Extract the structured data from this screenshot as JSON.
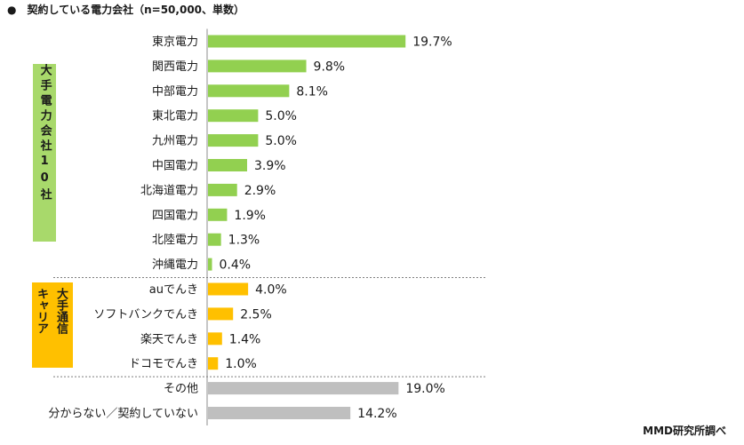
{
  "title": "●　契約している電力会社（n=50,000、単数）",
  "source": "MMD研究所調べ",
  "groups": {
    "major_power": "大手電力会社10社",
    "carrier_line1": "大手通信",
    "carrier_line2": "キャリア"
  },
  "colors": {
    "power": "#92d050",
    "carrier": "#ffc000",
    "other": "#bfbfbf",
    "power_group_bg": "#a8d96b"
  },
  "chart_data": {
    "type": "bar",
    "orientation": "horizontal",
    "title": "契約している電力会社（n=50,000、単数）",
    "xlabel": "",
    "ylabel": "",
    "unit": "%",
    "xlim": [
      0,
      30
    ],
    "grid": false,
    "categories": [
      "東京電力",
      "関西電力",
      "中部電力",
      "東北電力",
      "九州電力",
      "中国電力",
      "北海道電力",
      "四国電力",
      "北陸電力",
      "沖縄電力",
      "auでんき",
      "ソフトバンクでんき",
      "楽天でんき",
      "ドコモでんき",
      "その他",
      "分からない／契約していない"
    ],
    "values": [
      19.7,
      9.8,
      8.1,
      5.0,
      5.0,
      3.9,
      2.9,
      1.9,
      1.3,
      0.4,
      4.0,
      2.5,
      1.4,
      1.0,
      19.0,
      14.2
    ],
    "value_labels": [
      "19.7%",
      "9.8%",
      "8.1%",
      "5.0%",
      "5.0%",
      "3.9%",
      "2.9%",
      "1.9%",
      "1.3%",
      "0.4%",
      "4.0%",
      "2.5%",
      "1.4%",
      "1.0%",
      "19.0%",
      "14.2%"
    ],
    "bar_groups": [
      "power",
      "power",
      "power",
      "power",
      "power",
      "power",
      "power",
      "power",
      "power",
      "power",
      "carrier",
      "carrier",
      "carrier",
      "carrier",
      "other",
      "other"
    ]
  }
}
